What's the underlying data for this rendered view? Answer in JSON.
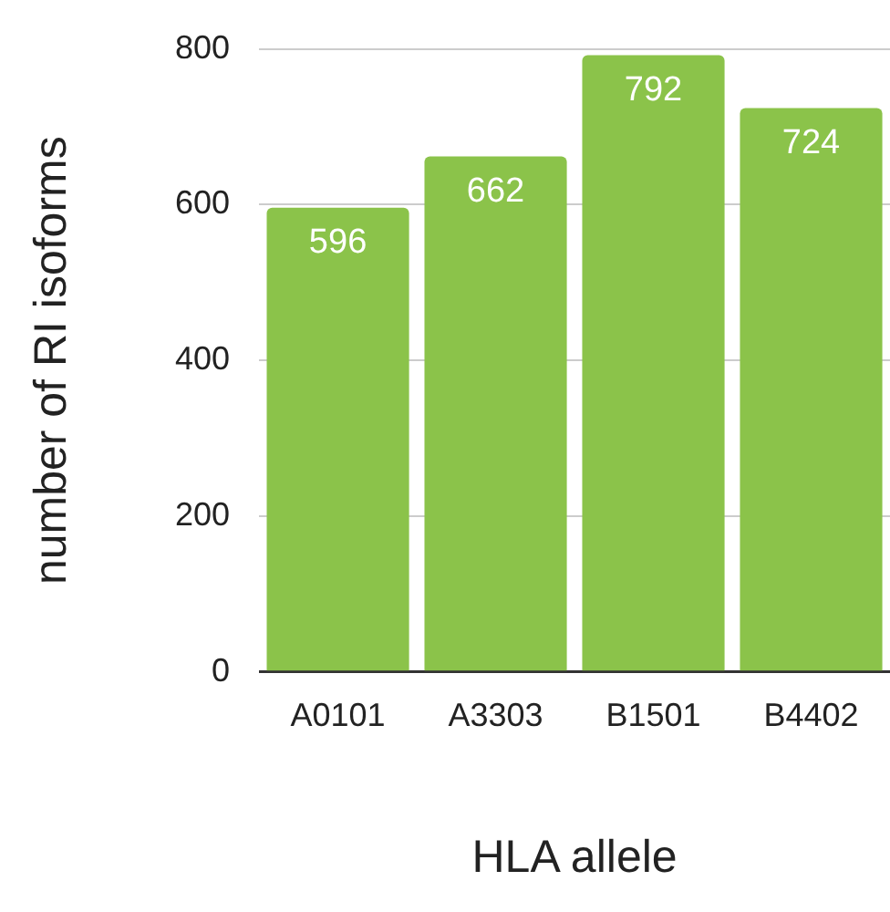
{
  "chart_data": {
    "type": "bar",
    "xlabel": "HLA allele",
    "ylabel": "number of RI isoforms",
    "categories": [
      "A0101",
      "A3303",
      "B1501",
      "B4402"
    ],
    "values": [
      596,
      662,
      792,
      724
    ],
    "color": "#8bc34a",
    "ylim": [
      0,
      800
    ],
    "yticks": [
      0,
      200,
      400,
      600,
      800
    ],
    "grid": "y",
    "data_labels": true,
    "legend": false
  }
}
